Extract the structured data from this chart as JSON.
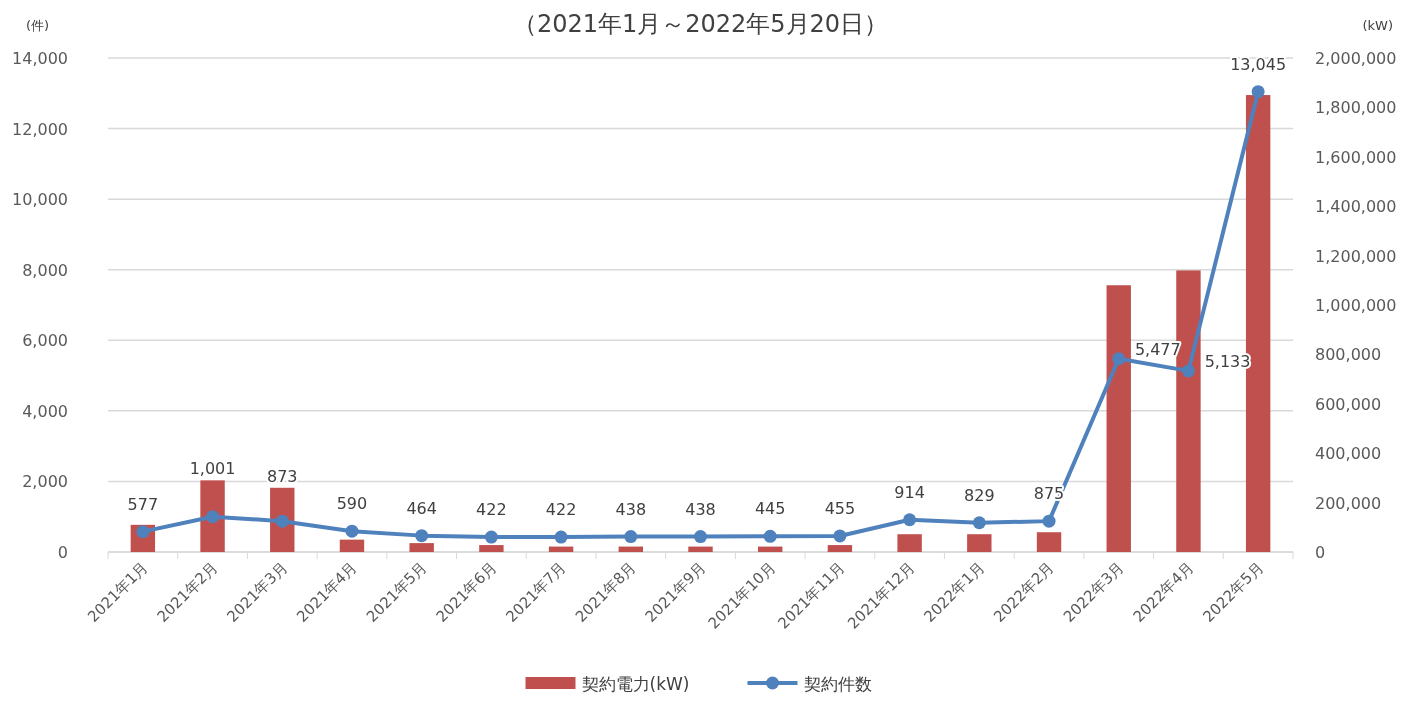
{
  "chart_data": {
    "type": "bar",
    "title": "（2021年1月～2022年5月20日）",
    "ylabel": "(件)",
    "y2label": "(kW)",
    "categories": [
      "2021年1月",
      "2021年2月",
      "2021年3月",
      "2021年4月",
      "2021年5月",
      "2021年6月",
      "2021年7月",
      "2021年8月",
      "2021年9月",
      "2021年10月",
      "2021年11月",
      "2021年12月",
      "2022年1月",
      "2022年2月",
      "2022年3月",
      "2022年4月",
      "2022年5月"
    ],
    "series": [
      {
        "name": "契約電力(kW)",
        "axis": "y2",
        "color": "#c0504d",
        "values": [
          110000,
          290000,
          260000,
          50000,
          36000,
          28000,
          22000,
          22000,
          22000,
          22000,
          28000,
          72000,
          72000,
          80000,
          1080000,
          1140000,
          1850000
        ]
      },
      {
        "name": "契約件数",
        "type": "line",
        "color": "#4f81bd",
        "values": [
          577,
          1001,
          873,
          590,
          464,
          422,
          422,
          438,
          438,
          445,
          455,
          914,
          829,
          875,
          5477,
          5133,
          13045
        ],
        "value_labels": [
          "577",
          "1,001",
          "873",
          "590",
          "464",
          "422",
          "422",
          "438",
          "438",
          "445",
          "455",
          "914",
          "829",
          "875",
          "5,477",
          "5,133",
          "13,045"
        ]
      }
    ],
    "ylim": [
      0,
      14000
    ],
    "yticks": [
      0,
      {
        "value": 2000,
        "label": "2,000"
      },
      {
        "value": 4000,
        "label": "4,000"
      },
      {
        "value": 6000,
        "label": "6,000"
      },
      {
        "value": 8000,
        "label": "8,000"
      },
      {
        "value": 10000,
        "label": "10,000"
      },
      {
        "value": 12000,
        "label": "12,000"
      },
      {
        "value": 14000,
        "label": "14,000"
      }
    ],
    "y2lim": [
      0,
      2000000
    ],
    "y2ticks": [
      0,
      {
        "value": 200000,
        "label": "200,000"
      },
      {
        "value": 400000,
        "label": "400,000"
      },
      {
        "value": 600000,
        "label": "600,000"
      },
      {
        "value": 800000,
        "label": "800,000"
      },
      {
        "value": 1000000,
        "label": "1,000,000"
      },
      {
        "value": 1200000,
        "label": "1,200,000"
      },
      {
        "value": 1400000,
        "label": "1,400,000"
      },
      {
        "value": 1600000,
        "label": "1,600,000"
      },
      {
        "value": 1800000,
        "label": "1,800,000"
      },
      {
        "value": 2000000,
        "label": "2,000,000"
      }
    ],
    "grid": "y",
    "legend": "bottom",
    "marker": "circle"
  }
}
